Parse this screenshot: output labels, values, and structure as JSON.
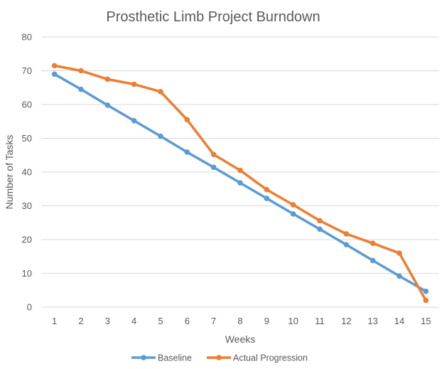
{
  "chart_data": {
    "type": "line",
    "title": "Prosthetic Limb Project Burndown",
    "xlabel": "Weeks",
    "ylabel": "Number of Tasks",
    "categories": [
      "1",
      "2",
      "3",
      "4",
      "5",
      "6",
      "7",
      "8",
      "9",
      "10",
      "11",
      "12",
      "13",
      "14",
      "15"
    ],
    "ylim": [
      0,
      80
    ],
    "yticks": [
      0,
      10,
      20,
      30,
      40,
      50,
      60,
      70,
      80
    ],
    "grid": true,
    "legend": "bottom",
    "series": [
      {
        "name": "Baseline",
        "color": "#5b9bd5",
        "values": [
          69.0,
          64.5,
          59.8,
          55.2,
          50.6,
          45.9,
          41.4,
          36.8,
          32.2,
          27.6,
          23.1,
          18.5,
          13.8,
          9.2,
          4.7
        ]
      },
      {
        "name": "Actual Progression",
        "color": "#ed7d31",
        "values": [
          71.5,
          70.0,
          67.5,
          66.0,
          63.8,
          55.5,
          45.2,
          40.5,
          34.8,
          30.3,
          25.6,
          21.7,
          18.9,
          16.0,
          2.0
        ]
      }
    ]
  }
}
